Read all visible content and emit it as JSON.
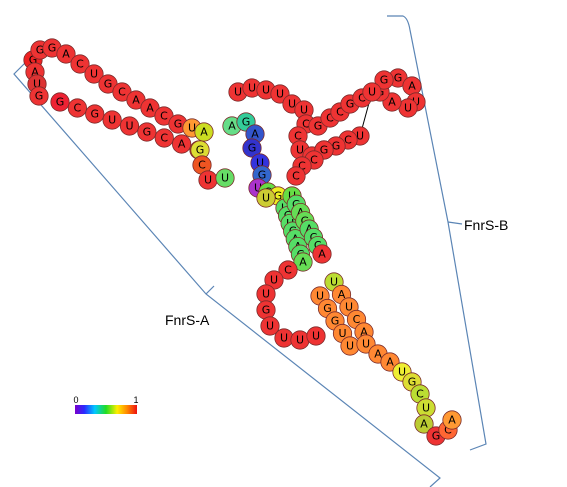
{
  "annotations": {
    "domain_a": "FnrS-A",
    "domain_b": "FnrS-B"
  },
  "colorbar": {
    "min_label": "0",
    "max_label": "1"
  },
  "colors": {
    "stroke": "#7a2b2b",
    "bracket": "#5b85b5",
    "link": "#000000"
  },
  "segments": [
    {
      "name": "loop-1-5prime-arm",
      "seq": "GAUG",
      "colors": [
        "#e22",
        "#e33",
        "#d33",
        "#e33"
      ]
    },
    {
      "name": "stem-1-lower",
      "seq": "GCGUUGCAC",
      "colors": [
        "#e23",
        "#e33",
        "#e33",
        "#e33",
        "#e33",
        "#e33",
        "#e33",
        "#e33",
        "#e52"
      ]
    },
    {
      "name": "stem-1-upper",
      "seq": "GGACUGCAACGUA",
      "colors": [
        "#e33",
        "#e33",
        "#e33",
        "#e33",
        "#e33",
        "#e33",
        "#e33",
        "#e33",
        "#e33",
        "#e33",
        "#e33",
        "#f93",
        "#cd2"
      ]
    },
    {
      "name": "multiloop-left",
      "seq": "GCUU",
      "colors": [
        "#dd3",
        "#e52",
        "#e33",
        "#6d6"
      ]
    },
    {
      "name": "multiloop-top",
      "seq": "AGAGUGU",
      "colors": [
        "#6d8",
        "#3c9",
        "#35c",
        "#33c",
        "#33d",
        "#36c",
        "#a3c"
      ]
    },
    {
      "name": "junction",
      "seq": "CGU",
      "colors": [
        "#6d4",
        "#ee2",
        "#cc3"
      ]
    },
    {
      "name": "stem-3-left",
      "seq": "UCUCAACA",
      "colors": [
        "#5d6",
        "#5d6",
        "#5d6",
        "#5d6",
        "#5d6",
        "#5d6",
        "#5d6",
        "#6d5"
      ]
    },
    {
      "name": "hairpin-loop-3",
      "seq": "CUUGUUUU",
      "colors": [
        "#e33",
        "#e33",
        "#e33",
        "#e33",
        "#e33",
        "#e33",
        "#e33",
        "#e33"
      ]
    },
    {
      "name": "stem-3-right",
      "seq": "UGAGACCA",
      "colors": [
        "#6d4",
        "#5d6",
        "#6d5",
        "#6d5",
        "#5d6",
        "#5d6",
        "#5d6",
        "#e33"
      ]
    },
    {
      "name": "stem-4-left",
      "seq": "UAUCA",
      "colors": [
        "#bd3",
        "#f83",
        "#f83",
        "#f83",
        "#f83"
      ]
    },
    {
      "name": "stem-4-right",
      "seq": "UGGUU",
      "colors": [
        "#f83",
        "#f83",
        "#f83",
        "#f83",
        "#f83"
      ]
    },
    {
      "name": "hairpin-4",
      "seq": "UAAUGCUAGCA",
      "colors": [
        "#f83",
        "#f83",
        "#f83",
        "#ee3",
        "#dd3",
        "#bd3",
        "#cd3",
        "#bc3",
        "#e33",
        "#f63",
        "#f93"
      ]
    },
    {
      "name": "stem-2",
      "seq": "UUUUUUCCUGC",
      "colors": [
        "#e33",
        "#e33",
        "#e33",
        "#e33",
        "#e33",
        "#e33",
        "#e33",
        "#e33",
        "#e33",
        "#e33",
        "#e33"
      ]
    },
    {
      "name": "hairpin-2",
      "seq": "GAUUAGG",
      "colors": [
        "#e33",
        "#e33",
        "#e33",
        "#e33",
        "#e33",
        "#e33",
        "#e33"
      ]
    },
    {
      "name": "stem-2-3prime",
      "seq": "GCCGCUUCGGCCC",
      "colors": [
        "#e33",
        "#e33",
        "#e33",
        "#e33",
        "#e33",
        "#e33",
        "#e33",
        "#e33",
        "#e33",
        "#e33",
        "#e33",
        "#e33",
        "#e33"
      ]
    }
  ]
}
